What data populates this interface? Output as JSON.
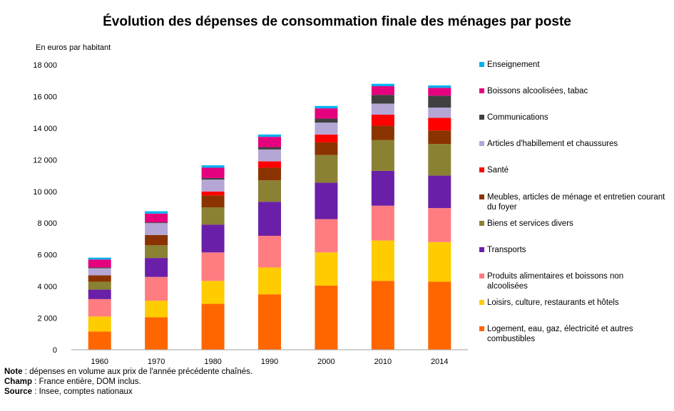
{
  "chart_data": {
    "type": "bar",
    "stacked": true,
    "title": "Évolution des dépenses de consommation finale des ménages par poste",
    "ylabel": "En euros par habitant",
    "xlabel": "",
    "ylim": [
      0,
      18000
    ],
    "yticks": [
      0,
      2000,
      4000,
      6000,
      8000,
      10000,
      12000,
      14000,
      16000,
      18000
    ],
    "ytick_labels": [
      "0",
      "2 000",
      "4 000",
      "6 000",
      "8 000",
      "10 000",
      "12 000",
      "14 000",
      "16 000",
      "18 000"
    ],
    "categories": [
      "1960",
      "1970",
      "1980",
      "1990",
      "2000",
      "2010",
      "2014"
    ],
    "legend_position": "right",
    "grid": false,
    "series": [
      {
        "name": "Logement, eau, gaz, électricité et autres combustibles",
        "color": "#ff6600",
        "values": [
          1150,
          2050,
          2900,
          3500,
          4050,
          4350,
          4300
        ]
      },
      {
        "name": "Loisirs, culture, restaurants et hôtels",
        "color": "#ffcc00",
        "values": [
          950,
          1050,
          1450,
          1700,
          2100,
          2550,
          2500
        ]
      },
      {
        "name": "Produits alimentaires et boissons non alcoolisées",
        "color": "#ff7c80",
        "values": [
          1100,
          1500,
          1800,
          2000,
          2100,
          2200,
          2150
        ]
      },
      {
        "name": "Transports",
        "color": "#6a1fa8",
        "values": [
          600,
          1200,
          1750,
          2150,
          2300,
          2200,
          2050
        ]
      },
      {
        "name": "Biens et services divers",
        "color": "#8b8133",
        "values": [
          500,
          800,
          1100,
          1350,
          1750,
          1950,
          2000
        ]
      },
      {
        "name": "Meubles, articles de ménage et entretien courant du foyer",
        "color": "#8b3300",
        "values": [
          400,
          650,
          750,
          800,
          800,
          900,
          850
        ]
      },
      {
        "name": "Santé",
        "color": "#ff0000",
        "values": [
          0,
          0,
          250,
          400,
          500,
          700,
          800
        ]
      },
      {
        "name": "Articles d'habillement et chaussures",
        "color": "#b4a7d6",
        "values": [
          450,
          750,
          750,
          750,
          750,
          700,
          650
        ]
      },
      {
        "name": "Communications",
        "color": "#404040",
        "values": [
          50,
          50,
          100,
          150,
          250,
          550,
          750
        ]
      },
      {
        "name": "Boissons alcoolisées, tabac",
        "color": "#e5007e",
        "values": [
          500,
          550,
          650,
          650,
          650,
          550,
          500
        ]
      },
      {
        "name": "Enseignement",
        "color": "#00b0f0",
        "values": [
          120,
          150,
          150,
          150,
          150,
          150,
          150
        ]
      }
    ]
  },
  "legend_order": [
    10,
    9,
    8,
    7,
    6,
    5,
    4,
    3,
    2,
    1,
    0
  ],
  "notes": [
    {
      "label": "Note",
      "text": " : dépenses en volume aux prix de l'année précédente chaînés."
    },
    {
      "label": "Champ",
      "text": " : France entière, DOM inclus."
    },
    {
      "label": "Source",
      "text": " : Insee, comptes nationaux"
    }
  ]
}
